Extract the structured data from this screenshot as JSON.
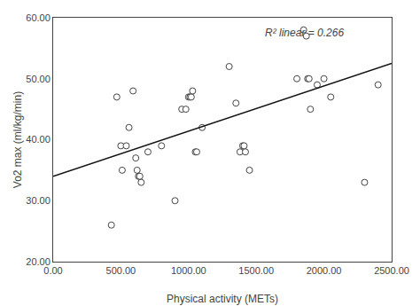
{
  "chart_data": {
    "type": "scatter",
    "xlabel": "Physical activity (METs)",
    "ylabel": "Vo2 max (ml/kg/min)",
    "annotation": "R² linear = 0.266",
    "series": [
      {
        "type": "scatter",
        "marker": "circle",
        "color": "white",
        "x": [
          430,
          470,
          500,
          510,
          540,
          560,
          590,
          610,
          620,
          630,
          640,
          650,
          700,
          800,
          900,
          950,
          980,
          1000,
          1010,
          1020,
          1030,
          1050,
          1060,
          1100,
          1300,
          1350,
          1380,
          1400,
          1410,
          1420,
          1450,
          1800,
          1850,
          1870,
          1880,
          1890,
          1900,
          1950,
          2000,
          2050,
          2300,
          2400
        ],
        "values": [
          26,
          47,
          39,
          35,
          39,
          42,
          48,
          37,
          35,
          34,
          34,
          33,
          38,
          39,
          30,
          45,
          45,
          47,
          47,
          47,
          48,
          38,
          38,
          42,
          52,
          46,
          38,
          39,
          39,
          38,
          35,
          50,
          58,
          57,
          50,
          50,
          45,
          49,
          50,
          47,
          33,
          49
        ]
      },
      {
        "type": "line",
        "line_style": "solid",
        "color": "#111111",
        "x": [
          0,
          2500
        ],
        "values": [
          34.0,
          52.5
        ]
      }
    ],
    "xlim": [
      0,
      2500
    ],
    "ylim": [
      20,
      60
    ],
    "xticks": [
      {
        "value": 0,
        "label": "0.00"
      },
      {
        "value": 500,
        "label": "500.00"
      },
      {
        "value": 1000,
        "label": "1000.00"
      },
      {
        "value": 1500,
        "label": "1500.00"
      },
      {
        "value": 2000,
        "label": "2000.00"
      },
      {
        "value": 2500,
        "label": "2500.00"
      }
    ],
    "yticks": [
      {
        "value": 20,
        "label": "20.00"
      },
      {
        "value": 30,
        "label": "30.00"
      },
      {
        "value": 40,
        "label": "40.00"
      },
      {
        "value": 50,
        "label": "50.00"
      },
      {
        "value": 60,
        "label": "60.00"
      }
    ],
    "grid": false
  }
}
